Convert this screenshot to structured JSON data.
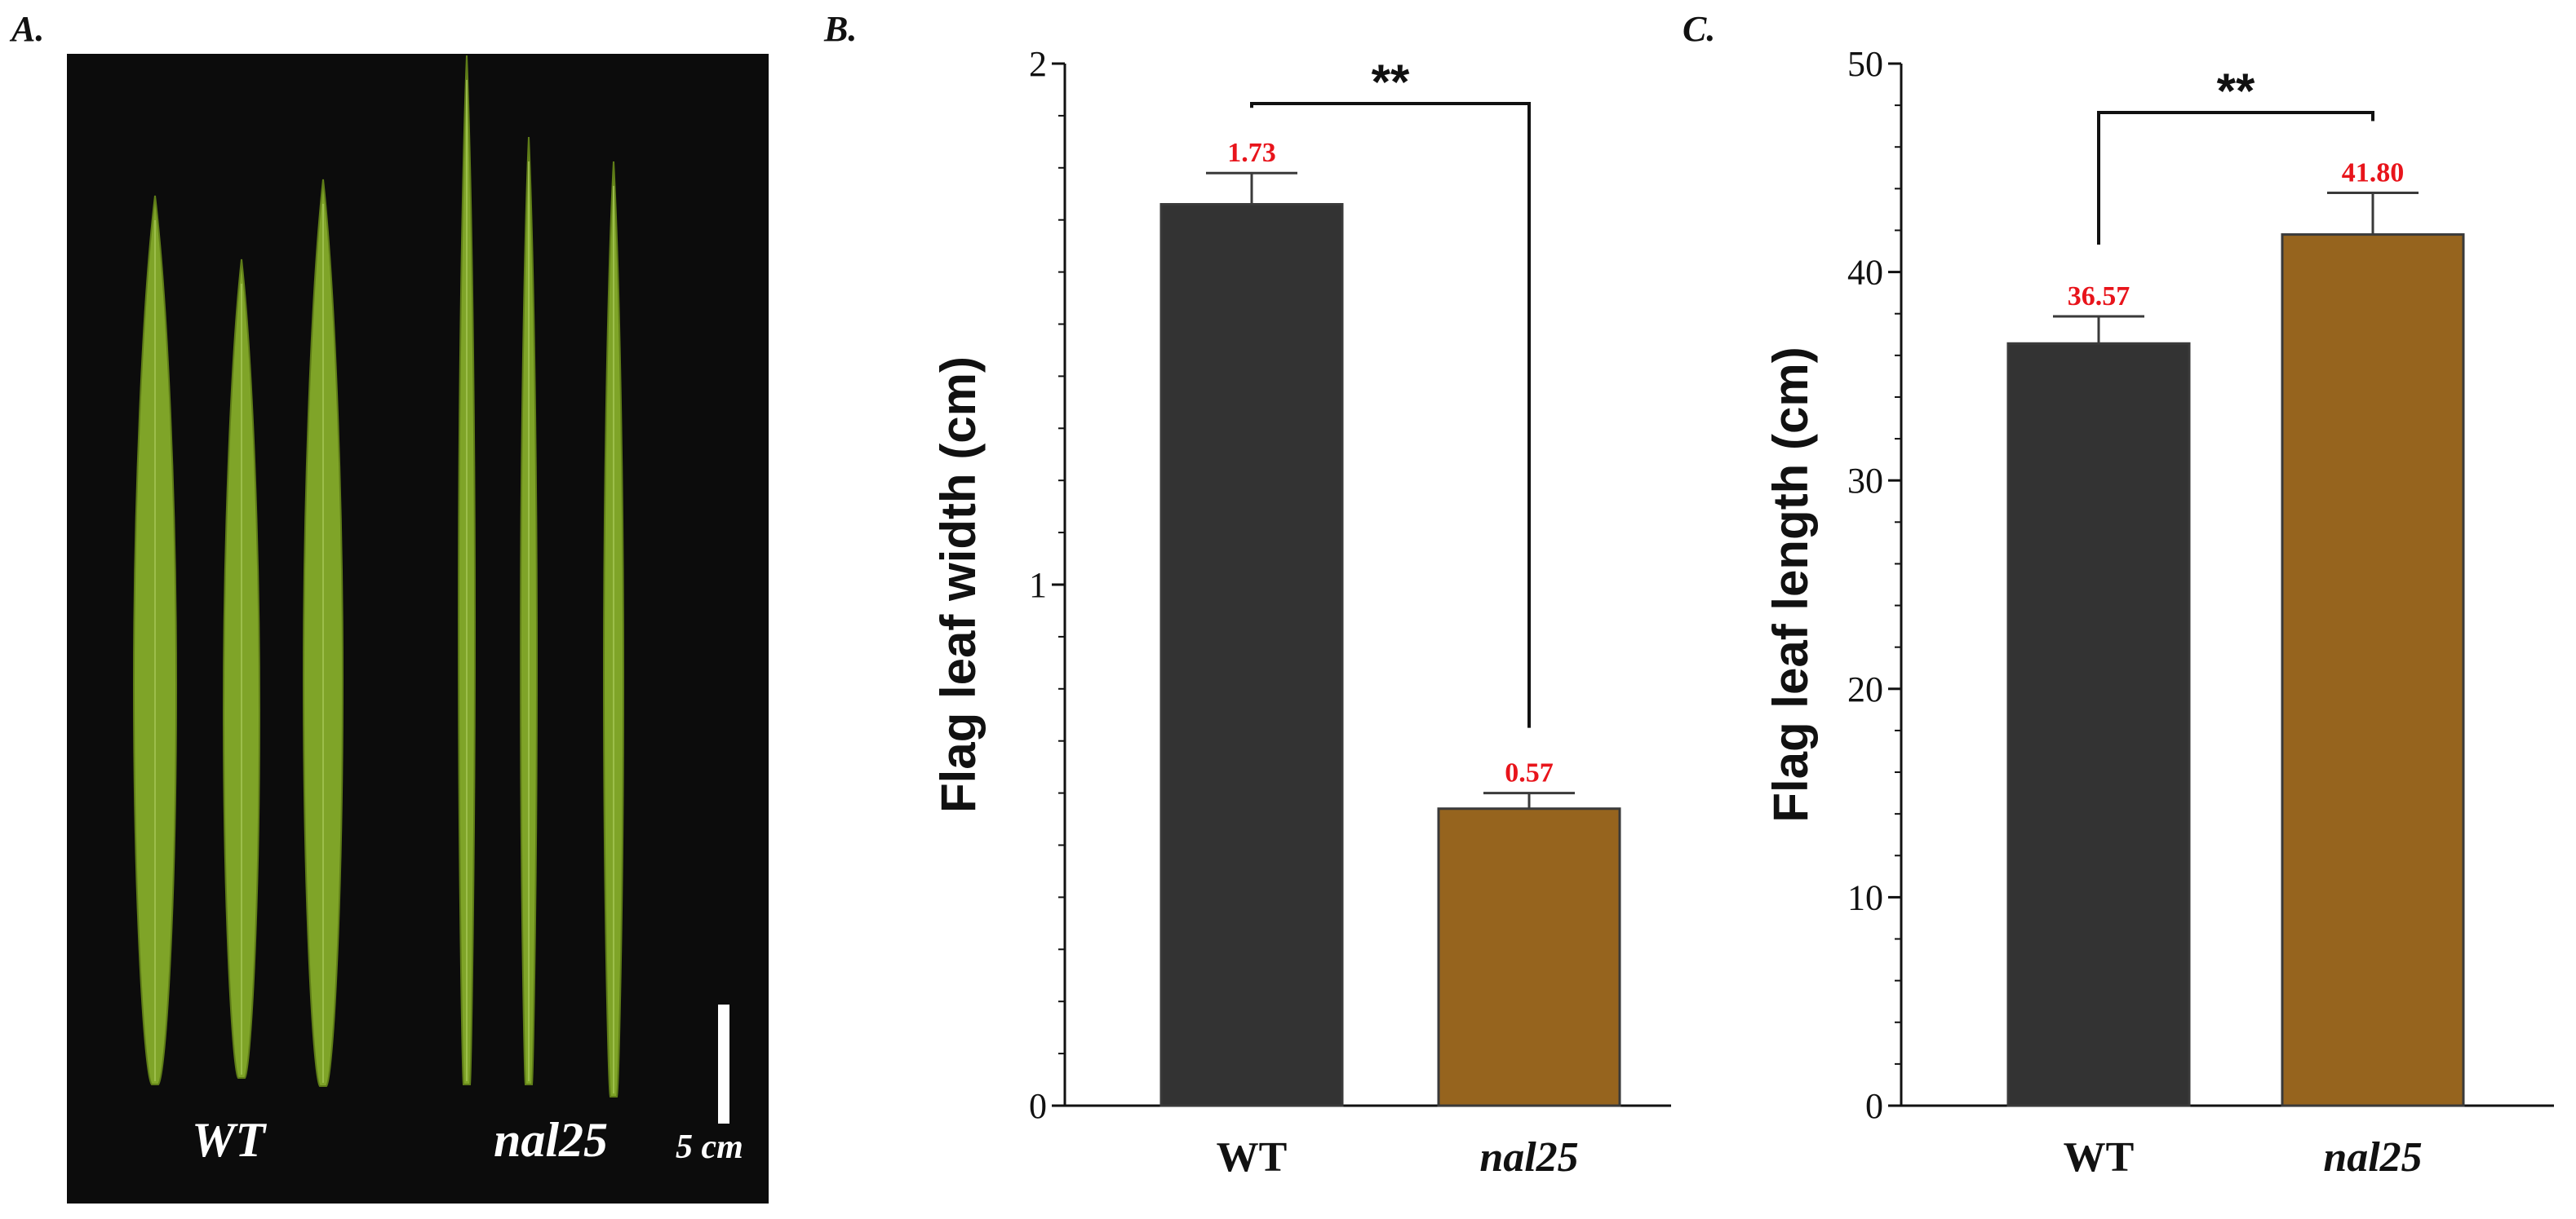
{
  "panels": {
    "a_label": "A.",
    "b_label": "B.",
    "c_label": "C."
  },
  "photo": {
    "wt_label": "WT",
    "mutant_label": "nal25",
    "scale_bar_label": "5 cm",
    "background_color": "#0c0c0c",
    "leaf_color": "#7fa428",
    "leaf_edge_color": "#5f7d18"
  },
  "colors": {
    "wt_bar": "#333333",
    "mutant_bar": "#96641e",
    "value_label": "#e8141b",
    "axis": "#111111"
  },
  "chart_data": [
    {
      "type": "bar",
      "panel": "B",
      "title": "",
      "xlabel": "",
      "ylabel": "Flag leaf width (cm)",
      "categories": [
        "WT",
        "nal25"
      ],
      "values": [
        1.73,
        0.57
      ],
      "errors": [
        0.06,
        0.03
      ],
      "value_labels": [
        "1.73",
        "0.57"
      ],
      "ylim": [
        0,
        2
      ],
      "major_ticks": [
        0,
        1,
        2
      ],
      "minor_step": 0.1,
      "significance": "**",
      "grid": false
    },
    {
      "type": "bar",
      "panel": "C",
      "title": "",
      "xlabel": "",
      "ylabel": "Flag leaf length (cm)",
      "categories": [
        "WT",
        "nal25"
      ],
      "values": [
        36.57,
        41.8
      ],
      "errors": [
        1.3,
        2.0
      ],
      "value_labels": [
        "36.57",
        "41.80"
      ],
      "ylim": [
        0,
        50
      ],
      "major_ticks": [
        0,
        10,
        20,
        30,
        40,
        50
      ],
      "minor_step": 2,
      "significance": "**",
      "grid": false
    }
  ]
}
